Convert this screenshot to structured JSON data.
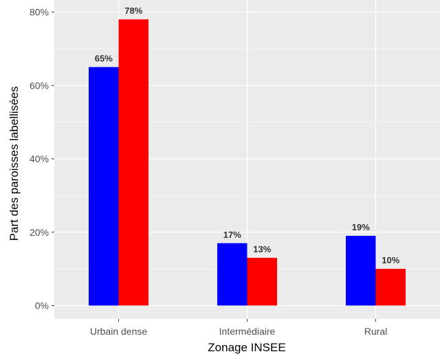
{
  "chart_data": {
    "type": "bar",
    "title": "",
    "xlabel": "Zonage INSEE",
    "ylabel": "Part des paroisses labellisées",
    "categories": [
      "Urbain dense",
      "Intermédiaire",
      "Rural"
    ],
    "series": [
      {
        "color": "#0000FF",
        "values": [
          0.65,
          0.17,
          0.19
        ],
        "labels": [
          "65%",
          "17%",
          "19%"
        ]
      },
      {
        "color": "#FF0000",
        "values": [
          0.78,
          0.13,
          0.1
        ],
        "labels": [
          "78%",
          "13%",
          "10%"
        ]
      }
    ],
    "ylim": [
      0,
      0.8
    ],
    "yticks": [
      0,
      0.2,
      0.4,
      0.6,
      0.8
    ],
    "ytick_labels": [
      "0%",
      "20%",
      "40%",
      "60%",
      "80%"
    ],
    "grid": true,
    "legend": "none",
    "panel_color": "#EBEBEB"
  }
}
